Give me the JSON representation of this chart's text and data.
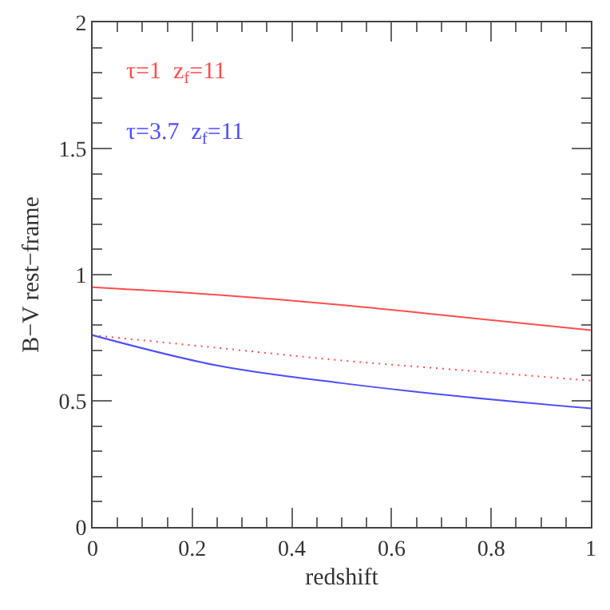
{
  "chart_data": {
    "type": "line",
    "xlabel": "redshift",
    "ylabel": "B−V rest−frame",
    "xlim": [
      0,
      1
    ],
    "ylim": [
      0,
      2
    ],
    "xticks": [
      0,
      0.2,
      0.4,
      0.6,
      0.8,
      1
    ],
    "yticks": [
      0,
      0.5,
      1,
      1.5,
      2
    ],
    "legend": false,
    "x": [
      0,
      0.25,
      0.5,
      0.75,
      1
    ],
    "series": [
      {
        "name": "τ=1  z$_{f}$=11",
        "color": "#ff4d4d",
        "values": [
          0.95,
          0.92,
          0.88,
          0.83,
          0.78
        ],
        "line_style": "solid"
      },
      {
        "color": "#ff4d4d",
        "values": [
          0.76,
          0.71,
          0.66,
          0.62,
          0.58
        ],
        "line_style": "dotted"
      },
      {
        "name": "τ=3.7  z$_{f}$=11",
        "color": "#4d4dff",
        "values": [
          0.76,
          0.64,
          0.57,
          0.515,
          0.47
        ],
        "line_style": "solid"
      }
    ]
  }
}
